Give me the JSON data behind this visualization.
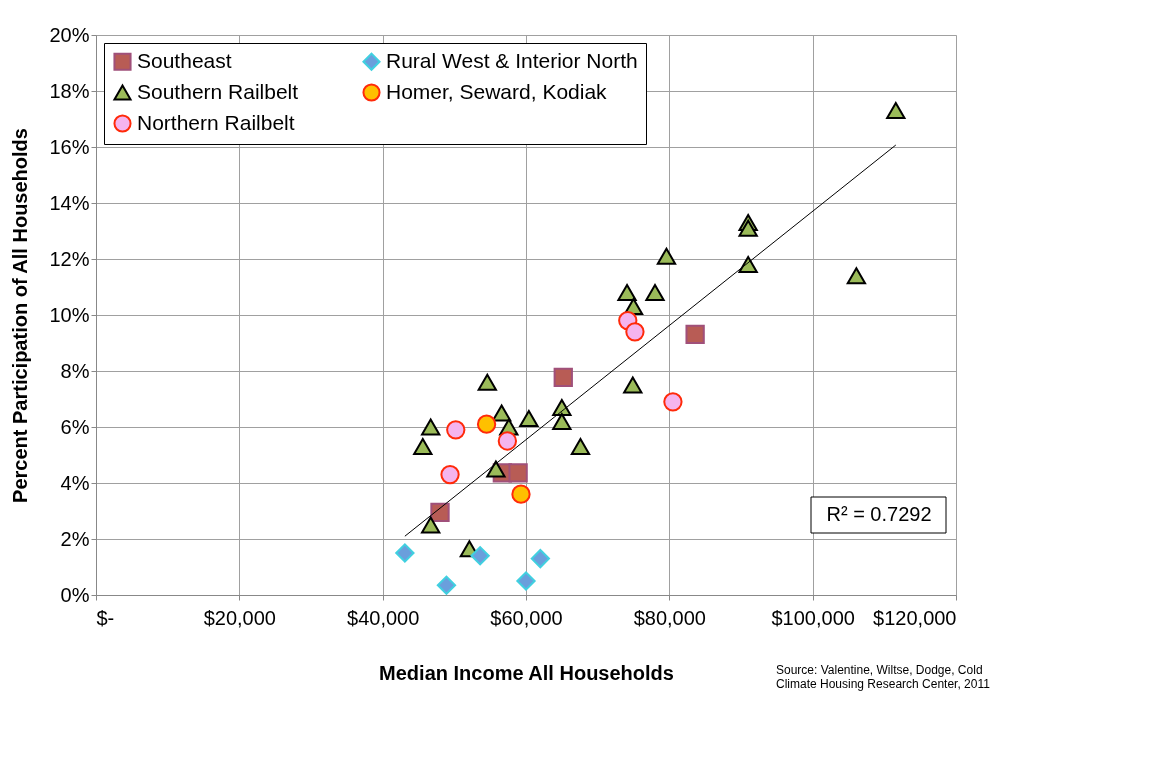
{
  "chart_data": {
    "type": "scatter",
    "xlabel": "Median Income All Households",
    "ylabel": "Percent Participation of All Households",
    "xlim": [
      0,
      120000
    ],
    "ylim": [
      0,
      20
    ],
    "xticks": [
      {
        "value": 0,
        "label": "$-"
      },
      {
        "value": 20000,
        "label": "$20,000"
      },
      {
        "value": 40000,
        "label": "$40,000"
      },
      {
        "value": 60000,
        "label": "$60,000"
      },
      {
        "value": 80000,
        "label": "$80,000"
      },
      {
        "value": 100000,
        "label": "$100,000"
      },
      {
        "value": 120000,
        "label": "$120,000"
      }
    ],
    "yticks": [
      {
        "value": 0,
        "label": "0%"
      },
      {
        "value": 2,
        "label": "2%"
      },
      {
        "value": 4,
        "label": "4%"
      },
      {
        "value": 6,
        "label": "6%"
      },
      {
        "value": 8,
        "label": "8%"
      },
      {
        "value": 10,
        "label": "10%"
      },
      {
        "value": 12,
        "label": "12%"
      },
      {
        "value": 14,
        "label": "14%"
      },
      {
        "value": 16,
        "label": "16%"
      },
      {
        "value": 18,
        "label": "18%"
      },
      {
        "value": 20,
        "label": "20%"
      }
    ],
    "grid": true,
    "legend": "top left",
    "series": [
      {
        "name": "Southeast",
        "color": "#b85c55",
        "marker": "square",
        "x": [
          48000,
          56700,
          58900,
          65200,
          83600
        ],
        "values": [
          2.95,
          4.36,
          4.36,
          7.77,
          9.31
        ]
      },
      {
        "name": "Southern Railbelt",
        "color": "#9bbb59",
        "marker": "triangle",
        "x": [
          111600,
          91000,
          91000,
          79600,
          91000,
          106100,
          74100,
          78000,
          75000,
          54600,
          74900,
          65000,
          56600,
          60400,
          65000,
          46700,
          57600,
          45600,
          67600,
          55800,
          46700,
          52100
        ],
        "values": [
          17.3,
          13.3,
          13.1,
          12.1,
          11.8,
          11.4,
          10.8,
          10.8,
          10.3,
          7.6,
          7.5,
          6.7,
          6.5,
          6.3,
          6.2,
          6.0,
          6.0,
          5.3,
          5.3,
          4.5,
          2.5,
          1.65
        ]
      },
      {
        "name": "Northern Railbelt",
        "color": "#f5b4ee",
        "marker": "circle",
        "x": [
          50200,
          57400,
          49400,
          74200,
          75200,
          80500
        ],
        "values": [
          5.9,
          5.5,
          4.3,
          9.8,
          9.4,
          6.9
        ]
      },
      {
        "name": "Rural West & Interior North",
        "color": "#6a9fdc",
        "marker": "diamond",
        "x": [
          43100,
          48900,
          53600,
          60000,
          62000
        ],
        "values": [
          1.5,
          0.35,
          1.4,
          0.5,
          1.3
        ]
      },
      {
        "name": "Homer, Seward, Kodiak",
        "color": "#ffc000",
        "marker": "circle",
        "x": [
          54500,
          59300
        ],
        "values": [
          6.1,
          3.6
        ]
      },
      {
        "type": "line",
        "color": "#000000",
        "marker": "none",
        "x": [
          43100,
          111600
        ],
        "values": [
          2.1,
          16.07
        ]
      }
    ],
    "annotations": [
      "R² = 0.7292",
      "Source: Valentine, Wiltse, Dodge, Cold\nClimate Housing Research Center, 2011"
    ]
  }
}
